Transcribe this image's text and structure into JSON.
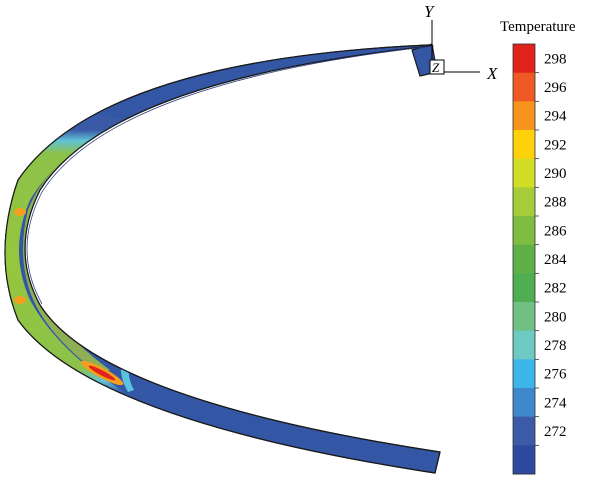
{
  "legend": {
    "title": "Temperature",
    "ticks": [
      "298",
      "296",
      "294",
      "292",
      "290",
      "288",
      "286",
      "284",
      "282",
      "280",
      "278",
      "276",
      "274",
      "272"
    ],
    "colors": [
      "#e0221b",
      "#ef5a24",
      "#f7941d",
      "#fdd20a",
      "#d2de26",
      "#a6cc3a",
      "#7fbd42",
      "#5fb046",
      "#4fae50",
      "#70c084",
      "#6ec9c2",
      "#3bb6e8",
      "#3f88cc",
      "#3b5ba8",
      "#2e4a9e"
    ]
  },
  "axes": {
    "x_label": "X",
    "y_label": "Y",
    "z_label": "Z"
  },
  "colors": {
    "pipe_cold": "#3457a5",
    "pipe_cool": "#4a7bc2",
    "pipe_cyan": "#59c3e0",
    "pipe_green": "#8cc24a",
    "pipe_lightgreen": "#b6d433",
    "pipe_orange": "#f3a021",
    "pipe_red": "#e0241b"
  }
}
